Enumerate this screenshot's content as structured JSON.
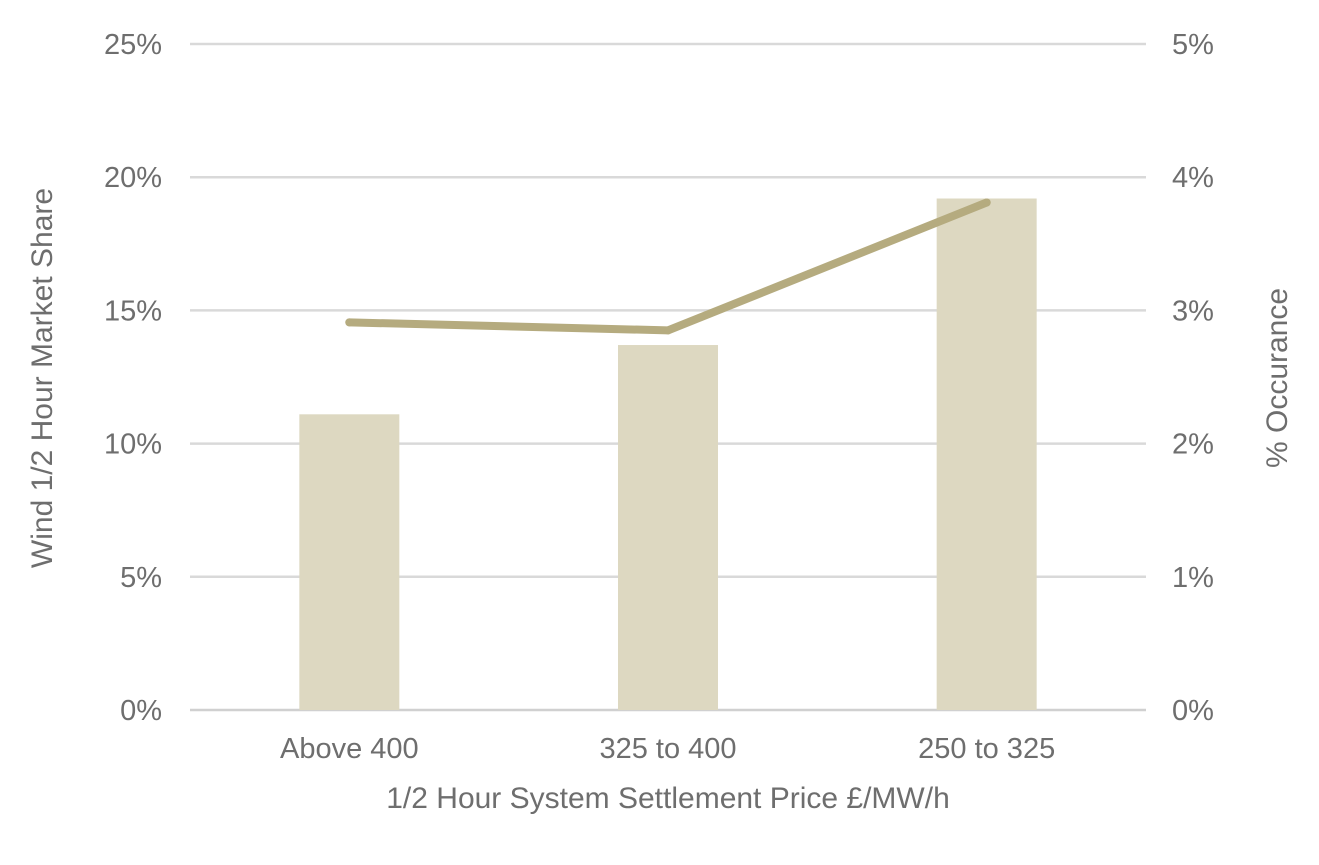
{
  "chart_data": {
    "type": "bar",
    "categories": [
      "Above 400",
      "325 to 400",
      "250 to 325"
    ],
    "series": [
      {
        "axis": "left",
        "kind": "bar",
        "values": [
          0.111,
          0.137,
          0.192
        ],
        "color": "#ddd8c1"
      },
      {
        "axis": "right",
        "kind": "line",
        "values": [
          0.0291,
          0.0285,
          0.0381
        ],
        "color": "#b5ab7f"
      }
    ],
    "xlabel": "1/2 Hour System Settlement Price £/MW/h",
    "ylabel": "Wind 1/2 Hour Market Share",
    "y2label": "% Occurance",
    "ylim": [
      0,
      0.25
    ],
    "y2lim": [
      0,
      0.05
    ],
    "yticks": [
      "0%",
      "5%",
      "10%",
      "15%",
      "20%",
      "25%"
    ],
    "y2ticks": [
      "0%",
      "1%",
      "2%",
      "3%",
      "4%",
      "5%"
    ],
    "grid": true,
    "legend": "none"
  }
}
